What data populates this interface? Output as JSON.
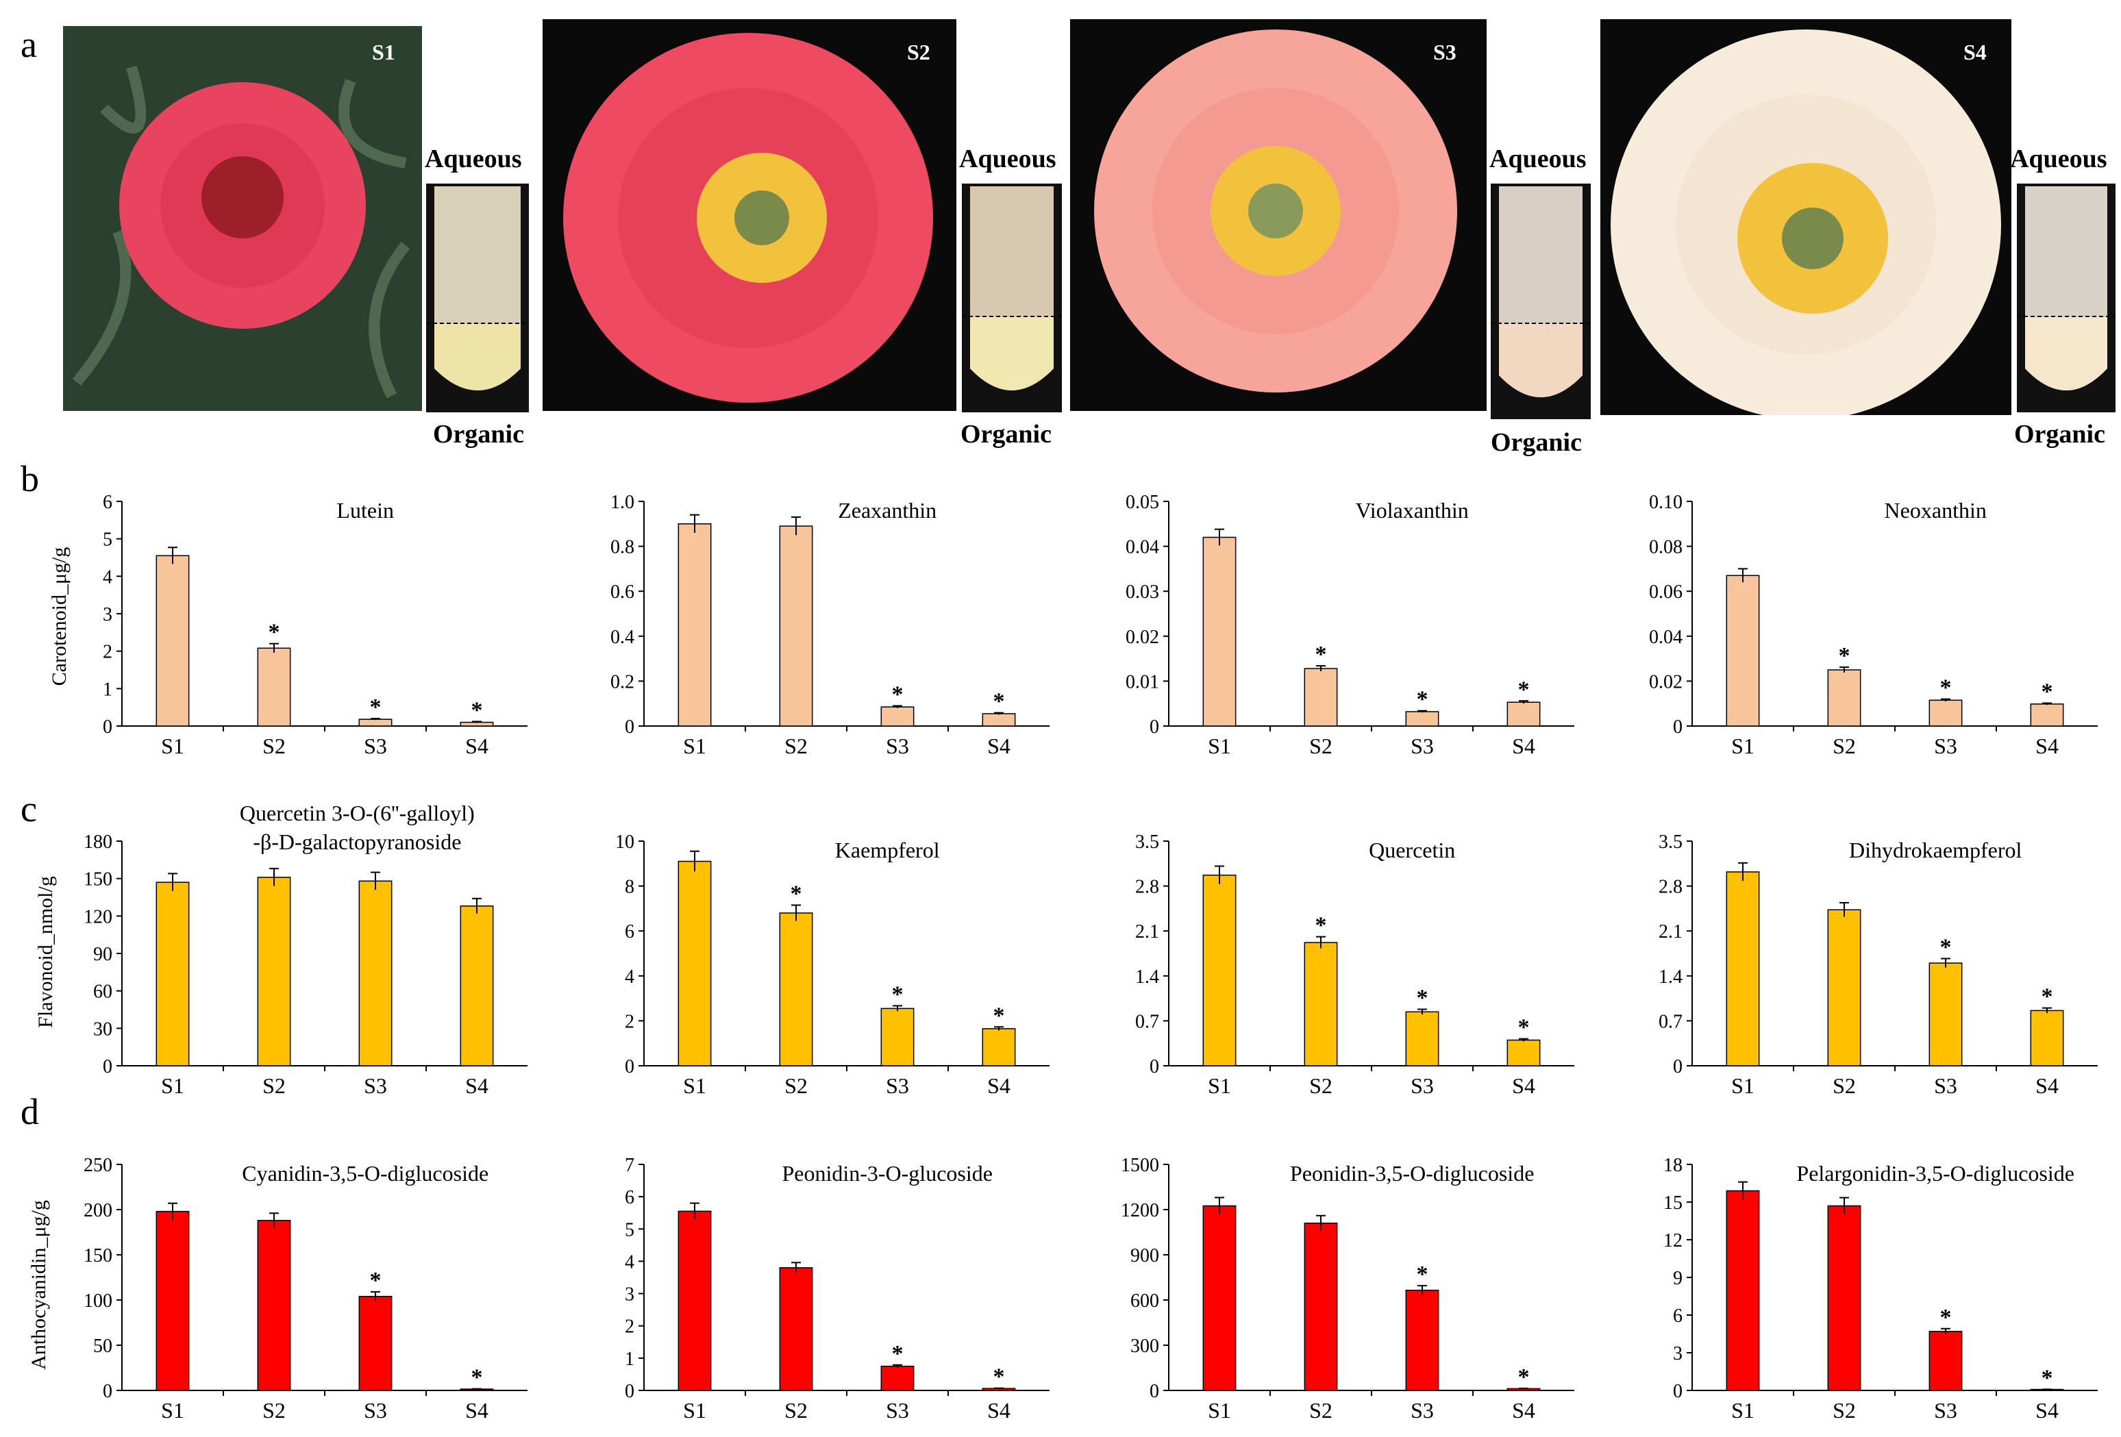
{
  "panels": {
    "a": "a",
    "b": "b",
    "c": "c",
    "d": "d"
  },
  "photos": [
    {
      "stage": "S1",
      "aqueous_label": "Aqueous",
      "organic_label": "Organic",
      "petal_color": "#e8445f",
      "tube_lower": "#efe4a8"
    },
    {
      "stage": "S2",
      "aqueous_label": "Aqueous",
      "organic_label": "Organic",
      "petal_color": "#ee4a62",
      "tube_lower": "#f0e8b0"
    },
    {
      "stage": "S3",
      "aqueous_label": "Aqueous",
      "organic_label": "Organic",
      "petal_color": "#f7a49a",
      "tube_lower": "#f2d8c0"
    },
    {
      "stage": "S4",
      "aqueous_label": "Aqueous",
      "organic_label": "Organic",
      "petal_color": "#f7ebdc",
      "tube_lower": "#f5e6cc"
    }
  ],
  "row_ylabels": {
    "b": "Carotenoid_μg/g",
    "c": "Flavonoid_nmol/g",
    "d": "Anthocyanidin_μg/g"
  },
  "colors": {
    "carotenoid": "#f8c49a",
    "flavonoid": "#ffc000",
    "anthocyanidin": "#ff0000",
    "axis": "#000000"
  },
  "chart_data": [
    {
      "type": "bar",
      "row": "b",
      "col": 0,
      "title": "Lutein",
      "categories": [
        "S1",
        "S2",
        "S3",
        "S4"
      ],
      "values": [
        4.55,
        2.08,
        0.18,
        0.1
      ],
      "errors": [
        0.22,
        0.12,
        0.02,
        0.02
      ],
      "significant": [
        false,
        true,
        true,
        true
      ],
      "ylim": [
        0,
        6
      ],
      "yticks": [
        0,
        1,
        2,
        3,
        4,
        5,
        6
      ],
      "tick_labels": [
        "0",
        "1",
        "2",
        "3",
        "4",
        "5",
        "6"
      ]
    },
    {
      "type": "bar",
      "row": "b",
      "col": 1,
      "title": "Zeaxanthin",
      "categories": [
        "S1",
        "S2",
        "S3",
        "S4"
      ],
      "values": [
        0.9,
        0.89,
        0.085,
        0.055
      ],
      "errors": [
        0.04,
        0.04,
        0.005,
        0.004
      ],
      "significant": [
        false,
        false,
        true,
        true
      ],
      "ylim": [
        0,
        1.0
      ],
      "yticks": [
        0,
        0.2,
        0.4,
        0.6,
        0.8,
        1.0
      ],
      "tick_labels": [
        "0",
        "0.2",
        "0.4",
        "0.6",
        "0.8",
        "1.0"
      ]
    },
    {
      "type": "bar",
      "row": "b",
      "col": 2,
      "title": "Violaxanthin",
      "categories": [
        "S1",
        "S2",
        "S3",
        "S4"
      ],
      "values": [
        0.042,
        0.0128,
        0.0032,
        0.0053
      ],
      "errors": [
        0.0018,
        0.0006,
        0.0002,
        0.0003
      ],
      "significant": [
        false,
        true,
        true,
        true
      ],
      "ylim": [
        0,
        0.05
      ],
      "yticks": [
        0,
        0.01,
        0.02,
        0.03,
        0.04,
        0.05
      ],
      "tick_labels": [
        "0",
        "0.01",
        "0.02",
        "0.03",
        "0.04",
        "0.05"
      ]
    },
    {
      "type": "bar",
      "row": "b",
      "col": 3,
      "title": "Neoxanthin",
      "categories": [
        "S1",
        "S2",
        "S3",
        "S4"
      ],
      "values": [
        0.067,
        0.025,
        0.0115,
        0.0098
      ],
      "errors": [
        0.003,
        0.0012,
        0.0005,
        0.0004
      ],
      "significant": [
        false,
        true,
        true,
        true
      ],
      "ylim": [
        0,
        0.1
      ],
      "yticks": [
        0,
        0.02,
        0.04,
        0.06,
        0.08,
        0.1
      ],
      "tick_labels": [
        "0",
        "0.02",
        "0.04",
        "0.06",
        "0.08",
        "0.10"
      ]
    },
    {
      "type": "bar",
      "row": "c",
      "col": 0,
      "title": "Quercetin 3-O-(6''-galloyl)",
      "title2": "-β-D-galactopyranoside",
      "categories": [
        "S1",
        "S2",
        "S3",
        "S4"
      ],
      "values": [
        147,
        151,
        148,
        128
      ],
      "errors": [
        7,
        7,
        7,
        6
      ],
      "significant": [
        false,
        false,
        false,
        false
      ],
      "ylim": [
        0,
        180
      ],
      "yticks": [
        0,
        30,
        60,
        90,
        120,
        150,
        180
      ],
      "tick_labels": [
        "0",
        "30",
        "60",
        "90",
        "120",
        "150",
        "180"
      ]
    },
    {
      "type": "bar",
      "row": "c",
      "col": 1,
      "title": "Kaempferol",
      "categories": [
        "S1",
        "S2",
        "S3",
        "S4"
      ],
      "values": [
        9.1,
        6.8,
        2.55,
        1.65
      ],
      "errors": [
        0.45,
        0.35,
        0.12,
        0.08
      ],
      "significant": [
        false,
        true,
        true,
        true
      ],
      "ylim": [
        0,
        10
      ],
      "yticks": [
        0,
        2,
        4,
        6,
        8,
        10
      ],
      "tick_labels": [
        "0",
        "2",
        "4",
        "6",
        "8",
        "10"
      ]
    },
    {
      "type": "bar",
      "row": "c",
      "col": 2,
      "title": "Quercetin",
      "categories": [
        "S1",
        "S2",
        "S3",
        "S4"
      ],
      "values": [
        2.97,
        1.92,
        0.84,
        0.4
      ],
      "errors": [
        0.14,
        0.09,
        0.04,
        0.02
      ],
      "significant": [
        false,
        true,
        true,
        true
      ],
      "ylim": [
        0,
        3.5
      ],
      "yticks": [
        0,
        0.7,
        1.4,
        2.1,
        2.8,
        3.5
      ],
      "tick_labels": [
        "0",
        "0.7",
        "1.4",
        "2.1",
        "2.8",
        "3.5"
      ]
    },
    {
      "type": "bar",
      "row": "c",
      "col": 3,
      "title": "Dihydrokaempferol",
      "categories": [
        "S1",
        "S2",
        "S3",
        "S4"
      ],
      "values": [
        3.02,
        2.43,
        1.6,
        0.86
      ],
      "errors": [
        0.14,
        0.11,
        0.07,
        0.04
      ],
      "significant": [
        false,
        false,
        true,
        true
      ],
      "ylim": [
        0,
        3.5
      ],
      "yticks": [
        0,
        0.7,
        1.4,
        2.1,
        2.8,
        3.5
      ],
      "tick_labels": [
        "0",
        "0.7",
        "1.4",
        "2.1",
        "2.8",
        "3.5"
      ]
    },
    {
      "type": "bar",
      "row": "d",
      "col": 0,
      "title": "Cyanidin-3,5-O-diglucoside",
      "categories": [
        "S1",
        "S2",
        "S3",
        "S4"
      ],
      "values": [
        198,
        188,
        104,
        1.5
      ],
      "errors": [
        9,
        8,
        5,
        0.3
      ],
      "significant": [
        false,
        false,
        true,
        true
      ],
      "ylim": [
        0,
        250
      ],
      "yticks": [
        0,
        50,
        100,
        150,
        200,
        250
      ],
      "tick_labels": [
        "0",
        "50",
        "100",
        "150",
        "200",
        "250"
      ]
    },
    {
      "type": "bar",
      "row": "d",
      "col": 1,
      "title": "Peonidin-3-O-glucoside",
      "categories": [
        "S1",
        "S2",
        "S3",
        "S4"
      ],
      "values": [
        5.55,
        3.8,
        0.75,
        0.06
      ],
      "errors": [
        0.25,
        0.16,
        0.04,
        0.01
      ],
      "significant": [
        false,
        false,
        true,
        true
      ],
      "ylim": [
        0,
        7
      ],
      "yticks": [
        0,
        1,
        2,
        3,
        4,
        5,
        6,
        7
      ],
      "tick_labels": [
        "0",
        "1",
        "2",
        "3",
        "4",
        "5",
        "6",
        "7"
      ]
    },
    {
      "type": "bar",
      "row": "d",
      "col": 2,
      "title": "Peonidin-3,5-O-diglucoside",
      "categories": [
        "S1",
        "S2",
        "S3",
        "S4"
      ],
      "values": [
        1225,
        1110,
        665,
        12
      ],
      "errors": [
        55,
        50,
        30,
        2
      ],
      "significant": [
        false,
        false,
        true,
        true
      ],
      "ylim": [
        0,
        1500
      ],
      "yticks": [
        0,
        300,
        600,
        900,
        1200,
        1500
      ],
      "tick_labels": [
        "0",
        "300",
        "600",
        "900",
        "1200",
        "1500"
      ]
    },
    {
      "type": "bar",
      "row": "d",
      "col": 3,
      "title": "Pelargonidin-3,5-O-diglucoside",
      "categories": [
        "S1",
        "S2",
        "S3",
        "S4"
      ],
      "values": [
        15.9,
        14.7,
        4.7,
        0.08
      ],
      "errors": [
        0.7,
        0.65,
        0.22,
        0.01
      ],
      "significant": [
        false,
        false,
        true,
        true
      ],
      "ylim": [
        0,
        18
      ],
      "yticks": [
        0,
        3,
        6,
        9,
        12,
        15,
        18
      ],
      "tick_labels": [
        "0",
        "3",
        "6",
        "9",
        "12",
        "15",
        "18"
      ]
    }
  ]
}
